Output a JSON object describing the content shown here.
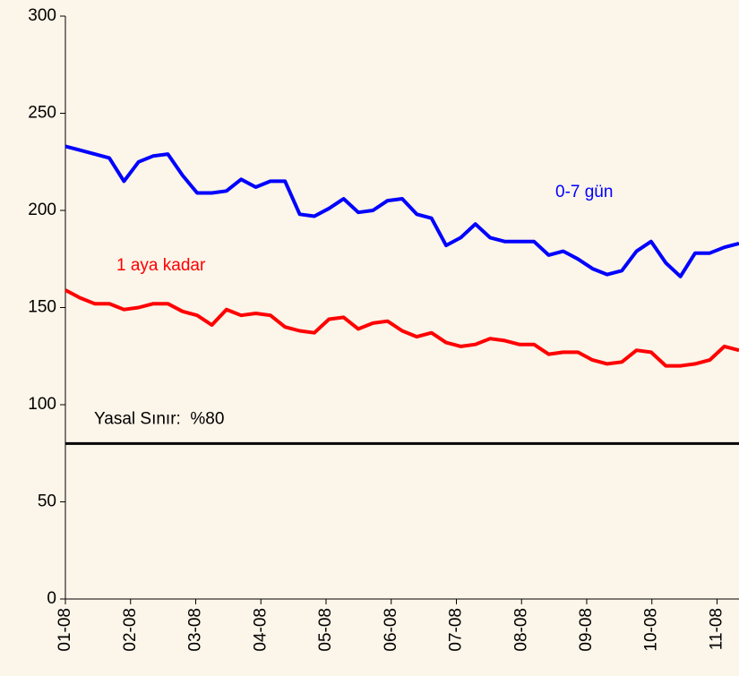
{
  "chart_data": {
    "type": "line",
    "x": [
      0,
      1,
      2,
      3,
      4,
      5,
      6,
      7,
      8,
      9,
      10,
      11,
      12,
      13,
      14,
      15,
      16,
      17,
      18,
      19,
      20,
      21,
      22,
      23,
      24,
      25,
      26,
      27,
      28,
      29,
      30,
      31,
      32,
      33,
      34,
      35,
      36,
      37,
      38,
      39,
      40,
      41,
      42,
      43,
      44,
      45,
      46
    ],
    "series": [
      {
        "name": "0-7 gün",
        "color": "#0000ff",
        "values": [
          233,
          231,
          229,
          227,
          215,
          225,
          228,
          229,
          218,
          209,
          209,
          210,
          216,
          212,
          215,
          215,
          198,
          197,
          201,
          206,
          199,
          200,
          205,
          206,
          198,
          196,
          182,
          186,
          193,
          186,
          184,
          184,
          184,
          177,
          179,
          175,
          170,
          167,
          169,
          179,
          184,
          173,
          166,
          178,
          178,
          181,
          183
        ]
      },
      {
        "name": "1 aya kadar",
        "color": "#ff0000",
        "values": [
          159,
          155,
          152,
          152,
          149,
          150,
          152,
          152,
          148,
          146,
          141,
          149,
          146,
          147,
          146,
          140,
          138,
          137,
          144,
          145,
          139,
          142,
          143,
          138,
          135,
          137,
          132,
          130,
          131,
          134,
          133,
          131,
          131,
          126,
          127,
          127,
          123,
          121,
          122,
          128,
          127,
          120,
          120,
          121,
          123,
          130,
          128
        ]
      }
    ],
    "reference_line": {
      "value": 80,
      "label": "Yasal Sınır:  %80",
      "color": "#000000"
    },
    "xlim": [
      0,
      46
    ],
    "xticks": [
      {
        "value": 0,
        "label": "01-08"
      },
      {
        "value": 4.45,
        "label": "02-08"
      },
      {
        "value": 8.9,
        "label": "03-08"
      },
      {
        "value": 13.35,
        "label": "04-08"
      },
      {
        "value": 17.8,
        "label": "05-08"
      },
      {
        "value": 22.25,
        "label": "06-08"
      },
      {
        "value": 26.7,
        "label": "07-08"
      },
      {
        "value": 31.15,
        "label": "08-08"
      },
      {
        "value": 35.6,
        "label": "09-08"
      },
      {
        "value": 40.05,
        "label": "10-08"
      },
      {
        "value": 44.5,
        "label": "11-08"
      }
    ],
    "ylim": [
      0,
      300
    ],
    "yticks": [
      0,
      50,
      100,
      150,
      200,
      250,
      300
    ]
  }
}
